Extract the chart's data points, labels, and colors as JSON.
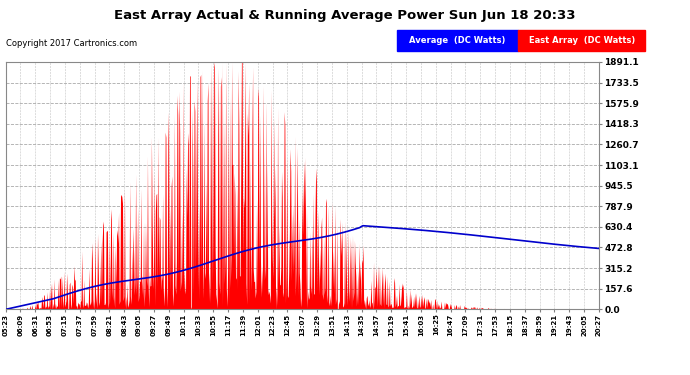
{
  "title": "East Array Actual & Running Average Power Sun Jun 18 20:33",
  "copyright": "Copyright 2017 Cartronics.com",
  "legend_avg": "Average  (DC Watts)",
  "legend_east": "East Array  (DC Watts)",
  "yticks": [
    0.0,
    157.6,
    315.2,
    472.8,
    630.4,
    787.9,
    945.5,
    1103.1,
    1260.7,
    1418.3,
    1575.9,
    1733.5,
    1891.1
  ],
  "ymax": 1891.1,
  "ymin": 0.0,
  "plot_bg_color": "#ffffff",
  "grid_color": "#aaaaaa",
  "bar_color": "#ff0000",
  "avg_color": "#0000cc",
  "title_color": "#000000",
  "xtick_labels": [
    "05:23",
    "06:09",
    "06:31",
    "06:53",
    "07:15",
    "07:37",
    "07:59",
    "08:21",
    "08:43",
    "09:05",
    "09:27",
    "09:49",
    "10:11",
    "10:33",
    "10:55",
    "11:17",
    "11:39",
    "12:01",
    "12:23",
    "12:45",
    "13:07",
    "13:29",
    "13:51",
    "14:13",
    "14:35",
    "14:57",
    "15:19",
    "15:41",
    "16:03",
    "16:25",
    "16:47",
    "17:09",
    "17:31",
    "17:53",
    "18:15",
    "18:37",
    "18:59",
    "19:21",
    "19:43",
    "20:05",
    "20:27"
  ],
  "fig_width": 6.9,
  "fig_height": 3.75,
  "dpi": 100
}
